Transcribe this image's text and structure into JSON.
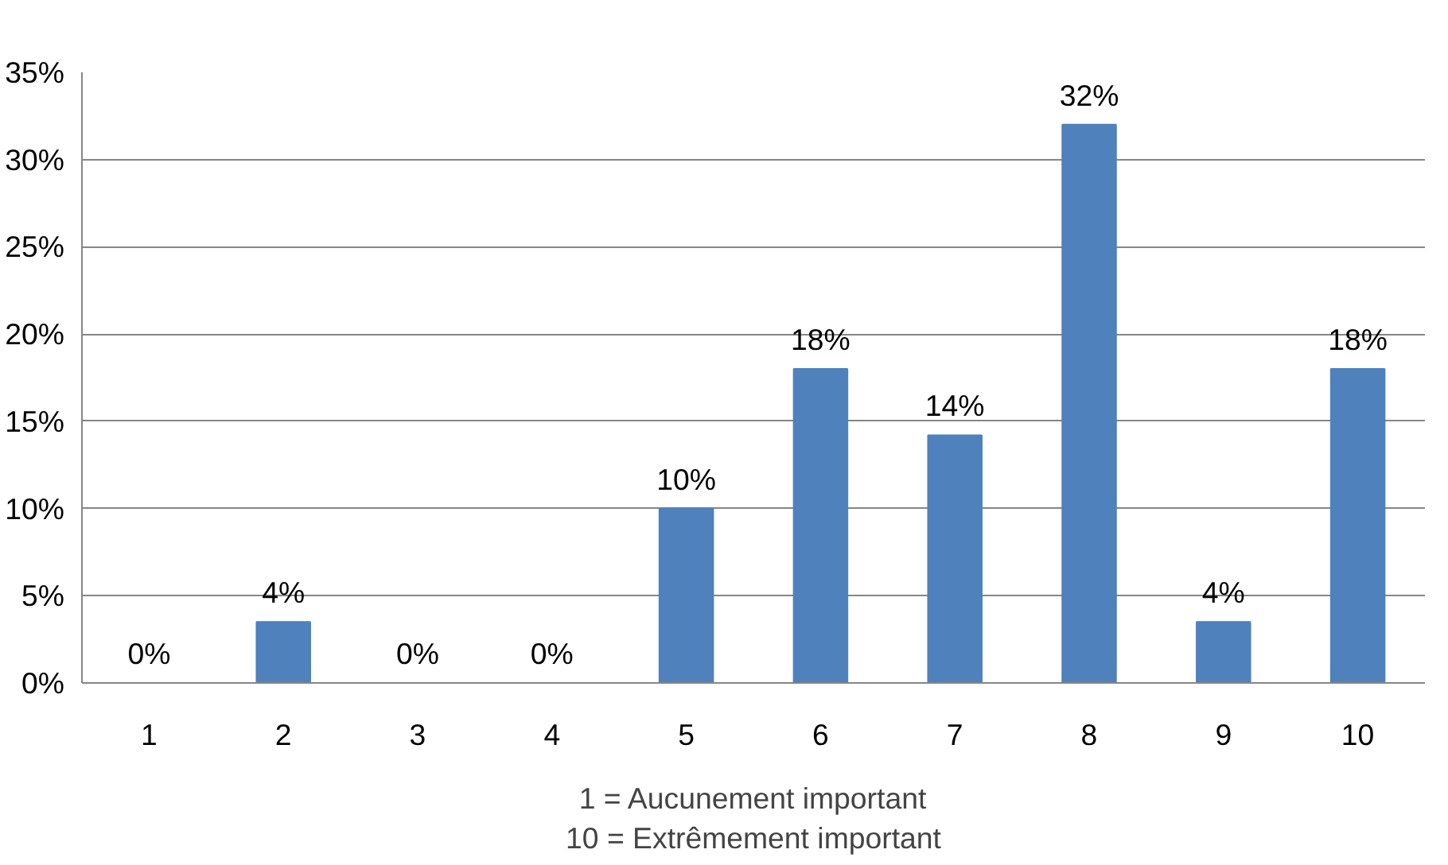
{
  "chart_data": {
    "type": "bar",
    "xlabel": "1 = Aucunement important\n10 = Extrêmement important",
    "categories": [
      "1",
      "2",
      "3",
      "4",
      "5",
      "6",
      "7",
      "8",
      "9",
      "10"
    ],
    "values": [
      0,
      3.5,
      0,
      0,
      10,
      18,
      14.2,
      32,
      3.5,
      18
    ],
    "value_labels": [
      "0%",
      "4%",
      "0%",
      "0%",
      "10%",
      "18%",
      "14%",
      "32%",
      "4%",
      "18%"
    ],
    "color": "#4f81bd",
    "ylim": [
      0,
      35
    ],
    "yticks": [
      {
        "value": 0,
        "label": "0%"
      },
      {
        "value": 5,
        "label": "5%"
      },
      {
        "value": 10,
        "label": "10%"
      },
      {
        "value": 15,
        "label": "15%"
      },
      {
        "value": 20,
        "label": "20%"
      },
      {
        "value": 25,
        "label": "25%"
      },
      {
        "value": 30,
        "label": "30%"
      },
      {
        "value": 35,
        "label": "35%"
      }
    ],
    "grid": "y"
  }
}
